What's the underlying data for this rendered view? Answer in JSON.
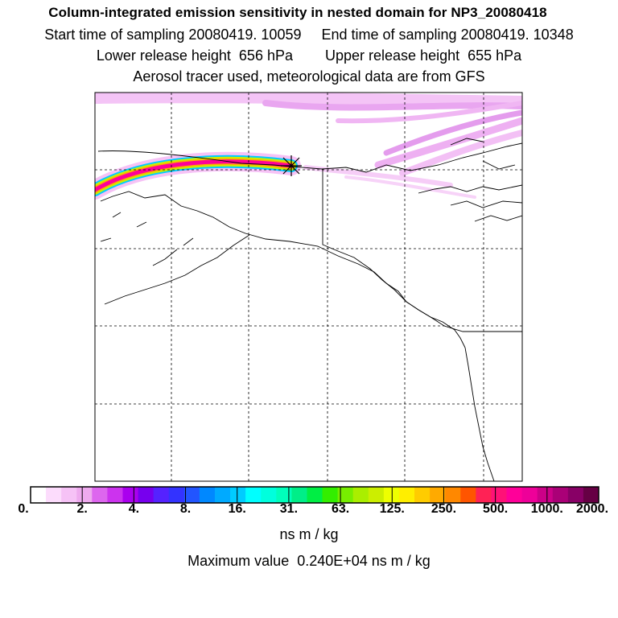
{
  "header": {
    "title": "Column-integrated emission sensitivity in nested domain for NP3_20080418",
    "line2": "Start time of sampling 20080419. 10059     End time of sampling 20080419. 10348",
    "line3": "Lower release height  656 hPa        Upper release height  655 hPa",
    "line4": "Aerosol tracer used, meteorological data are from GFS"
  },
  "map": {
    "region": "Alaska / Northwest North America",
    "receptor_marker": "asterisk",
    "grid_style": "dashed"
  },
  "colorbar": {
    "ticks": [
      "0.",
      "2.",
      "4.",
      "8.",
      "16.",
      "31.",
      "63.",
      "125.",
      "250.",
      "500.",
      "1000.",
      "2000."
    ],
    "colors": [
      "#ffffff",
      "#fcdcfc",
      "#f6c2f6",
      "#eeaaee",
      "#dd66ee",
      "#cc33ee",
      "#aa00ee",
      "#7700ee",
      "#5522ff",
      "#3333ff",
      "#2255ff",
      "#0088ff",
      "#00aaff",
      "#00ccff",
      "#00ffff",
      "#00ffdd",
      "#00ffbb",
      "#00ee88",
      "#00ee44",
      "#33ee00",
      "#77ee00",
      "#aaee00",
      "#ccee00",
      "#eeff00",
      "#ffee00",
      "#ffcc00",
      "#ffaa00",
      "#ff8800",
      "#ff5500",
      "#ff2255",
      "#ff1177",
      "#ff0099",
      "#ee0099",
      "#cc0088",
      "#aa0077",
      "#880066",
      "#660044"
    ],
    "units": "ns m / kg"
  },
  "footer": {
    "max_value": "Maximum value  0.240E+04 ns m / kg"
  }
}
